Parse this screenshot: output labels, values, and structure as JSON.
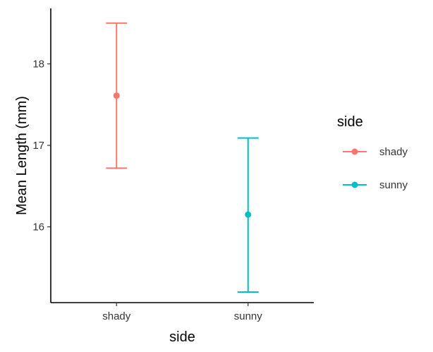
{
  "chart_data": {
    "type": "errorbar",
    "xlabel": "side",
    "ylabel": "Mean Length (mm)",
    "categories": [
      "shady",
      "sunny"
    ],
    "ylim": [
      15.07,
      18.68
    ],
    "yticks": [
      16,
      17,
      18
    ],
    "ytick_labels": [
      "16",
      "17",
      "18"
    ],
    "grid": false,
    "legend": {
      "title": "side",
      "placement": "right",
      "entries": [
        "shady",
        "sunny"
      ]
    },
    "series": [
      {
        "name": "shady",
        "color": "#F8766D",
        "mean": 17.61,
        "lower": 16.72,
        "upper": 18.5
      },
      {
        "name": "sunny",
        "color": "#00BFC4",
        "mean": 16.15,
        "lower": 15.2,
        "upper": 17.09
      }
    ]
  }
}
